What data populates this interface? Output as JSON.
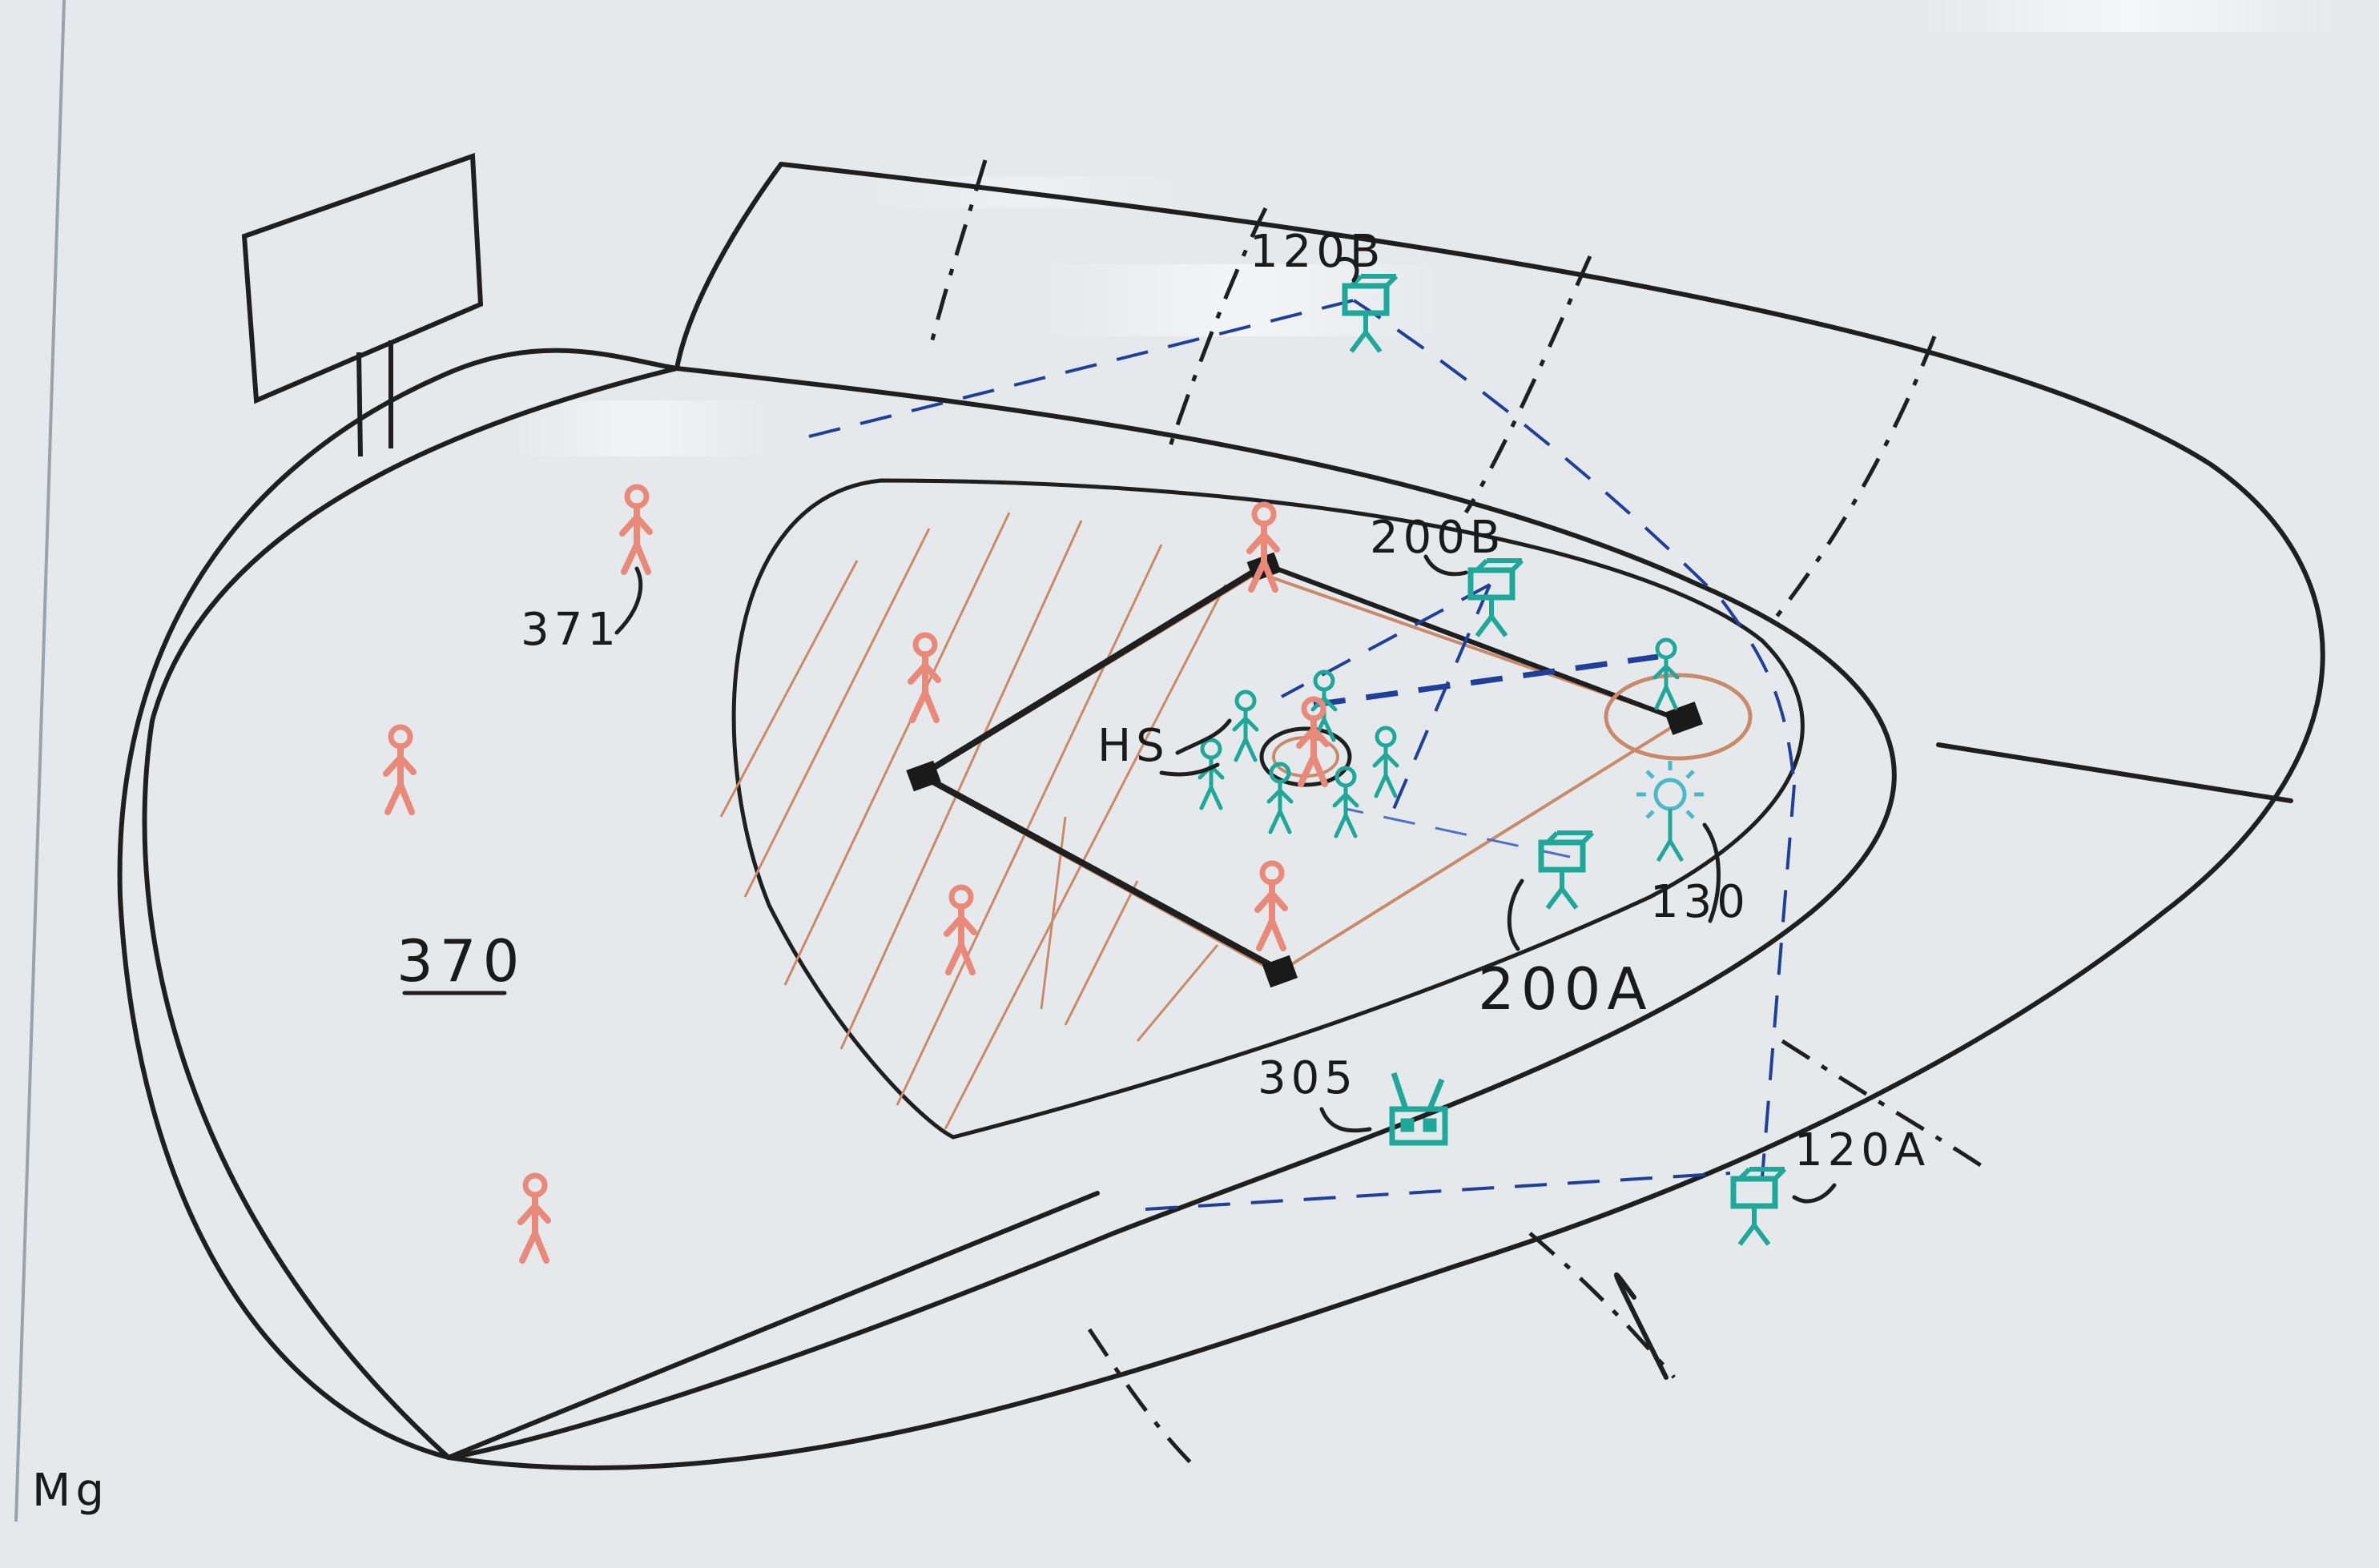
{
  "colors": {
    "board": "#e6e9ec",
    "ink_black": "#1f1f1f",
    "ink_red": "#e8897a",
    "ink_orange": "#c98a6a",
    "ink_teal": "#1fa89a",
    "ink_blue": "#1f3f9a"
  },
  "labels": {
    "cam_120b": "120B",
    "cam_120a": "120A",
    "cam_200b": "200B",
    "cam_200a": "200A",
    "light_130": "130",
    "hs": "HS",
    "area_370": "370",
    "person_371": "371",
    "tv_305": "305",
    "corner_mark": "Mg"
  },
  "icons": {
    "billboard": "billboard-icon",
    "camera": "camera-icon",
    "light": "light-icon",
    "tv": "tv-icon",
    "person": "person-icon",
    "base": "base-icon"
  }
}
